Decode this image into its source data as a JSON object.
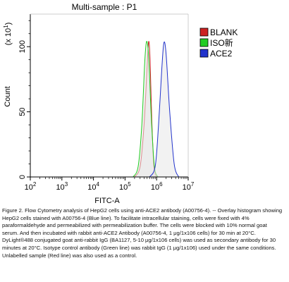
{
  "chart_data": {
    "type": "line",
    "title": "Multi-sample : P1",
    "xlabel": "FITC-A",
    "ylabel": "Count",
    "y_multiplier": "(x 10",
    "y_multiplier_exp": "1",
    "y_multiplier_close": ")",
    "xscale": "log",
    "xlim": [
      100,
      10000000
    ],
    "ylim": [
      0,
      125
    ],
    "x_ticks": [
      {
        "value": 100,
        "base": "10",
        "exp": "2"
      },
      {
        "value": 1000,
        "base": "10",
        "exp": "3"
      },
      {
        "value": 10000,
        "base": "10",
        "exp": "4"
      },
      {
        "value": 100000,
        "base": "10",
        "exp": "5"
      },
      {
        "value": 1000000,
        "base": "10",
        "exp": "6"
      },
      {
        "value": 10000000,
        "base": "10",
        "exp": "7"
      }
    ],
    "y_ticks": [
      {
        "value": 0,
        "label": "0"
      },
      {
        "value": 50,
        "label": "50"
      },
      {
        "value": 100,
        "label": "100"
      }
    ],
    "grid": false,
    "legend_position": "outside-right",
    "series": [
      {
        "name": "BLANK",
        "color": "#cc2222",
        "fill": "#e8e8e8",
        "x": [
          200000,
          300000,
          400000,
          500000,
          560000,
          620000,
          700000,
          820000,
          1000000
        ],
        "y": [
          0,
          8,
          40,
          85,
          104,
          90,
          45,
          8,
          0
        ]
      },
      {
        "name": "ISO新",
        "color": "#22cc22",
        "fill": "#e8e8e8",
        "x": [
          180000,
          260000,
          340000,
          420000,
          480000,
          560000,
          680000,
          850000,
          1100000
        ],
        "y": [
          0,
          8,
          40,
          88,
          104,
          92,
          45,
          8,
          0
        ]
      },
      {
        "name": "ACE2",
        "color": "#2233cc",
        "fill": "#e8e8e8",
        "x": [
          600000,
          900000,
          1150000,
          1450000,
          1700000,
          2000000,
          2600000,
          3600000,
          5000000
        ],
        "y": [
          0,
          8,
          40,
          82,
          103,
          94,
          50,
          10,
          0
        ]
      }
    ]
  },
  "caption": "Figure 2. Flow Cytometry analysis of HepG2 cells using anti-ACE2 antibody (A00756-4). -- Overlay histogram showing HepG2 cells stained with A00756-4 (Blue line). To facilitate intracellular staining, cells were fixed with 4% paraformaldehyde and permeabilized with permeabilization buffer. The cells were blocked with 10% normal goat serum. And then incubated with rabbit anti-ACE2 Antibody (A00756-4, 1 μg/1x106 cells) for 30 min at 20°C. DyLight®488 conjugated goat anti-rabbit IgG (BA1127, 5-10 μg/1x106 cells) was used as secondary antibody for 30 minutes at 20°C. Isotype control antibody (Green line) was rabbit IgG (1 μg/1x106) used under the same conditions. Unlabelled sample (Red line) was also used as a control."
}
